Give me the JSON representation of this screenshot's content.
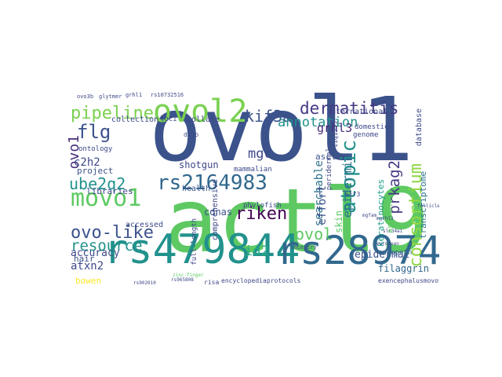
{
  "words": [
    {
      "text": "ovol1",
      "color": "#3b528b",
      "vertical": false
    },
    {
      "text": "actl9",
      "color": "#5ec962",
      "vertical": false
    },
    {
      "text": "rs479844",
      "color": "#21918c",
      "vertical": false
    },
    {
      "text": "rs2897442",
      "color": "#31688e",
      "vertical": false
    },
    {
      "text": "ovol2",
      "color": "#7ad151",
      "vertical": false
    },
    {
      "text": "movo1",
      "color": "#5ec962",
      "vertical": false
    },
    {
      "text": "pipeline",
      "color": "#7ad151",
      "vertical": false
    },
    {
      "text": "rs2164983",
      "color": "#31688e",
      "vertical": false
    },
    {
      "text": "dermatitis",
      "color": "#443983",
      "vertical": false
    },
    {
      "text": "consortium",
      "color": "#90d743",
      "vertical": true
    },
    {
      "text": "atopic",
      "color": "#21918c",
      "vertical": true
    },
    {
      "text": "ovo-like",
      "color": "#3b528b",
      "vertical": false
    },
    {
      "text": "resource",
      "color": "#21918c",
      "vertical": false
    },
    {
      "text": "kif3a",
      "color": "#3b528b",
      "vertical": false
    },
    {
      "text": "flg",
      "color": "#3b528b",
      "vertical": false
    },
    {
      "text": "ube2q2",
      "color": "#21918c",
      "vertical": false
    },
    {
      "text": "riken",
      "color": "#440154",
      "vertical": false
    },
    {
      "text": "ovol",
      "color": "#5ec962",
      "vertical": false
    },
    {
      "text": "prkag2",
      "color": "#443983",
      "vertical": true
    },
    {
      "text": "mgc",
      "color": "#3e4989",
      "vertical": false
    },
    {
      "text": "ovo1",
      "color": "#472d7b",
      "vertical": true
    },
    {
      "text": "annotation",
      "color": "#21918c",
      "vertical": false
    },
    {
      "text": "grhl3",
      "color": "#482878",
      "vertical": false
    },
    {
      "text": "id2",
      "color": "#25ab82",
      "vertical": false
    },
    {
      "text": "c2h2",
      "color": "#3e4989",
      "vertical": false
    },
    {
      "text": "epidermis",
      "color": "#2c728e",
      "vertical": true
    },
    {
      "text": "searchable",
      "color": "#2c728e",
      "vertical": true
    },
    {
      "text": "effort",
      "color": "#3b528b",
      "vertical": true
    },
    {
      "text": "atxn2",
      "color": "#3e4989",
      "vertical": false
    },
    {
      "text": "epidermal",
      "color": "#3b528b",
      "vertical": false
    },
    {
      "text": "accuracy",
      "color": "#3e4989",
      "vertical": false
    },
    {
      "text": "cdnas",
      "color": "#3b528b",
      "vertical": false
    },
    {
      "text": "shotgun",
      "color": "#3e4989",
      "vertical": false
    },
    {
      "text": "transcriptome",
      "color": "#2c728e",
      "vertical": true
    },
    {
      "text": "keratinocytes",
      "color": "#1f9e89",
      "vertical": true
    },
    {
      "text": "skin",
      "color": "#5ec962",
      "vertical": true
    },
    {
      "text": "filaggrin",
      "color": "#31688e",
      "vertical": false
    },
    {
      "text": "european",
      "color": "#31688e",
      "vertical": false
    },
    {
      "text": "project",
      "color": "#3b528b",
      "vertical": false
    },
    {
      "text": "ontology",
      "color": "#3e4989",
      "vertical": false
    },
    {
      "text": "libraries",
      "color": "#3e4989",
      "vertical": false
    },
    {
      "text": "hair",
      "color": "#3b528b",
      "vertical": false
    },
    {
      "text": "bowen",
      "color": "#fde725",
      "vertical": false
    },
    {
      "text": "health",
      "color": "#3b528b",
      "vertical": false
    },
    {
      "text": "accessed",
      "color": "#3e4989",
      "vertical": false
    },
    {
      "text": "ascl2",
      "color": "#3b528b",
      "vertical": false
    },
    {
      "text": "peridermal",
      "color": "#3e4989",
      "vertical": true
    },
    {
      "text": "collection",
      "color": "#3e4989",
      "vertical": false
    },
    {
      "text": "collate",
      "color": "#3e4989",
      "vertical": false
    },
    {
      "text": "loci",
      "color": "#3e4989",
      "vertical": false
    },
    {
      "text": "international",
      "color": "#3e4989",
      "vertical": false
    },
    {
      "text": "genome",
      "color": "#3e4989",
      "vertical": false
    },
    {
      "text": "domestic",
      "color": "#3e4989",
      "vertical": false
    },
    {
      "text": "database",
      "color": "#3e4989",
      "vertical": true
    },
    {
      "text": "comprehensive",
      "color": "#3e4989",
      "vertical": true
    },
    {
      "text": "full-length",
      "color": "#3e4989",
      "vertical": true
    },
    {
      "text": "mammalian",
      "color": "#3e4989",
      "vertical": false
    },
    {
      "text": "phylofish",
      "color": "#3e4989",
      "vertical": false
    },
    {
      "text": "11q13.5",
      "color": "#3e4989",
      "vertical": true
    },
    {
      "text": "elf3",
      "color": "#3e4989",
      "vertical": false
    },
    {
      "text": "dovo",
      "color": "#3e4989",
      "vertical": false
    },
    {
      "text": "ovo3b",
      "color": "#3e4989",
      "vertical": false
    },
    {
      "text": "glytmer",
      "color": "#3e4989",
      "vertical": false
    },
    {
      "text": "grhl1",
      "color": "#3e4989",
      "vertical": false
    },
    {
      "text": "rs10732516",
      "color": "#3e4989",
      "vertical": false
    },
    {
      "text": "encyclopedia",
      "color": "#3e4989",
      "vertical": false
    },
    {
      "text": "protocols",
      "color": "#3e4989",
      "vertical": false
    },
    {
      "text": "risa",
      "color": "#3e4989",
      "vertical": false
    },
    {
      "text": "rs902010",
      "color": "#3e4989",
      "vertical": false
    },
    {
      "text": "slc34a1",
      "color": "#3e4989",
      "vertical": false
    },
    {
      "text": "european",
      "color": "#3e4989",
      "vertical": false
    },
    {
      "text": "exencephalusmovota",
      "color": "#3e4989",
      "vertical": false
    },
    {
      "text": "assembled",
      "color": "#5ec962",
      "vertical": true
    },
    {
      "text": "mgrhl3",
      "color": "#3e4989",
      "vertical": false
    },
    {
      "text": "follicles",
      "color": "#3e4989",
      "vertical": false
    },
    {
      "text": "mgfam",
      "color": "#3e4989",
      "vertical": false
    },
    {
      "text": "rs965808",
      "color": "#3e4989",
      "vertical": false
    },
    {
      "text": "zinc-finger",
      "color": "#5ec962",
      "vertical": false
    },
    {
      "text": "ancestry",
      "color": "#3e4989",
      "vertical": false
    }
  ]
}
